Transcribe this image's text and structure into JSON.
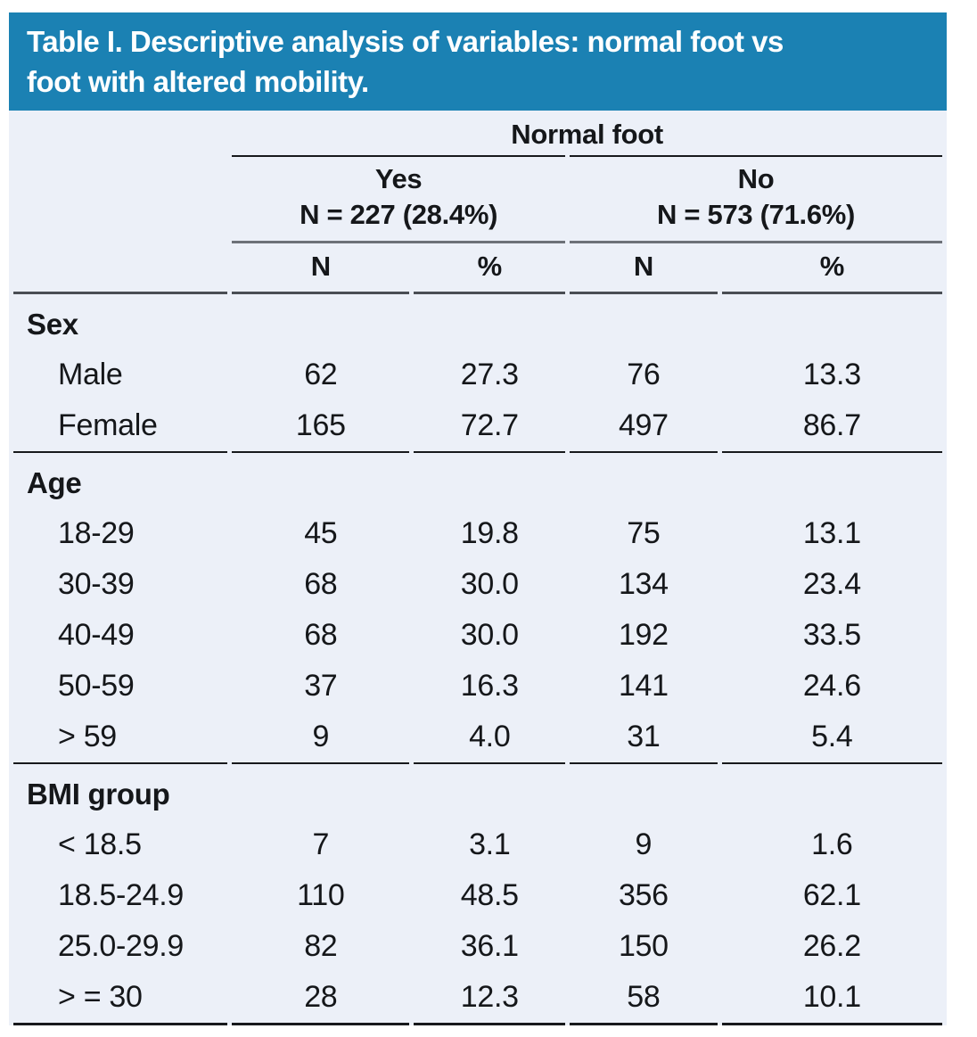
{
  "title": {
    "line1": "Table I. Descriptive analysis of variables: normal foot vs",
    "line2": "foot with altered mobility."
  },
  "colors": {
    "header_bg": "#1b81b3",
    "header_text": "#ffffff",
    "table_bg": "#ecf0f8",
    "line_dark": "#17191c",
    "line_mid": "#4a4e54",
    "line_gray": "#6d7178"
  },
  "table": {
    "group_header": "Normal foot",
    "subgroups": [
      {
        "label": "Yes",
        "n_label": "N = 227 (28.4%)"
      },
      {
        "label": "No",
        "n_label": "N = 573 (71.6%)"
      }
    ],
    "column_headers": [
      "N",
      "%",
      "N",
      "%"
    ],
    "sections": [
      {
        "name": "Sex",
        "rows": [
          {
            "label": "Male",
            "values": [
              "62",
              "27.3",
              "76",
              "13.3"
            ]
          },
          {
            "label": "Female",
            "values": [
              "165",
              "72.7",
              "497",
              "86.7"
            ]
          }
        ]
      },
      {
        "name": "Age",
        "rows": [
          {
            "label": "18-29",
            "values": [
              "45",
              "19.8",
              "75",
              "13.1"
            ]
          },
          {
            "label": "30-39",
            "values": [
              "68",
              "30.0",
              "134",
              "23.4"
            ]
          },
          {
            "label": "40-49",
            "values": [
              "68",
              "30.0",
              "192",
              "33.5"
            ]
          },
          {
            "label": "50-59",
            "values": [
              "37",
              "16.3",
              "141",
              "24.6"
            ]
          },
          {
            "label": "> 59",
            "values": [
              "9",
              "4.0",
              "31",
              "5.4"
            ]
          }
        ]
      },
      {
        "name": "BMI group",
        "rows": [
          {
            "label": "< 18.5",
            "values": [
              "7",
              "3.1",
              "9",
              "1.6"
            ]
          },
          {
            "label": "18.5-24.9",
            "values": [
              "110",
              "48.5",
              "356",
              "62.1"
            ]
          },
          {
            "label": "25.0-29.9",
            "values": [
              "82",
              "36.1",
              "150",
              "26.2"
            ]
          },
          {
            "label": "> = 30",
            "values": [
              "28",
              "12.3",
              "58",
              "10.1"
            ]
          }
        ]
      }
    ]
  }
}
